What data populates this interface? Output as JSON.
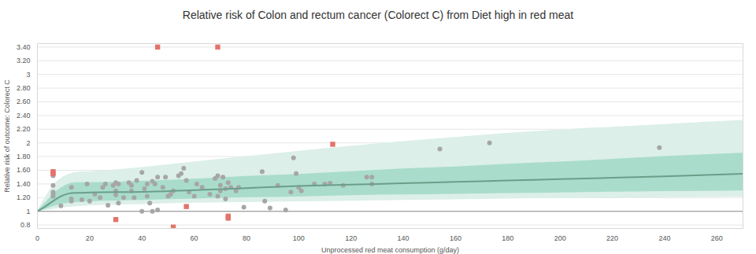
{
  "chart_data": {
    "type": "scatter",
    "title": "Relative risk of Colon and rectum cancer (Colorect C) from Diet high in red meat",
    "x_label": "Unprocessed red meat consumption (g/day)",
    "y_label": "Relative risk of outcome: Colorect C",
    "xlim": [
      0,
      270
    ],
    "xticks": [
      0,
      20,
      40,
      60,
      80,
      100,
      120,
      140,
      160,
      180,
      200,
      220,
      240,
      260
    ],
    "ylim": [
      0.75,
      3.45
    ],
    "yticks": [
      0.8,
      1,
      {
        "value": 1.2,
        "label": "1.20"
      },
      {
        "value": 1.4,
        "label": "1.40"
      },
      {
        "value": 1.6,
        "label": "1.60"
      },
      {
        "value": 1.8,
        "label": "1.80"
      },
      2,
      {
        "value": 2.2,
        "label": "2.20"
      },
      {
        "value": 2.4,
        "label": "2.40"
      },
      {
        "value": 2.6,
        "label": "2.60"
      },
      {
        "value": 2.8,
        "label": "2.80"
      },
      3,
      {
        "value": 3.2,
        "label": "3.20"
      },
      {
        "value": 3.4,
        "label": "3.40"
      }
    ],
    "grid": true,
    "baseline": 1,
    "bands": [
      {
        "color": "#dcefe9",
        "x": [
          0,
          3,
          6,
          9,
          12,
          15,
          20,
          40,
          60,
          80,
          100,
          120,
          140,
          160,
          180,
          200,
          220,
          240,
          270
        ],
        "lower": [
          1,
          1.01,
          1.03,
          1.05,
          1.06,
          1.07,
          1.08,
          1.1,
          1.12,
          1.13,
          1.14,
          1.15,
          1.16,
          1.17,
          1.18,
          1.19,
          1.19,
          1.2,
          1.21
        ],
        "upper": [
          1,
          1.2,
          1.38,
          1.48,
          1.54,
          1.57,
          1.58,
          1.64,
          1.72,
          1.8,
          1.88,
          1.95,
          2.02,
          2.08,
          2.14,
          2.19,
          2.23,
          2.27,
          2.33
        ]
      },
      {
        "color": "#a9dccb",
        "x": [
          0,
          3,
          6,
          9,
          12,
          15,
          20,
          40,
          60,
          80,
          100,
          120,
          140,
          160,
          180,
          200,
          220,
          240,
          270
        ],
        "lower": [
          1,
          1.03,
          1.07,
          1.1,
          1.12,
          1.13,
          1.14,
          1.16,
          1.18,
          1.2,
          1.21,
          1.23,
          1.24,
          1.25,
          1.26,
          1.27,
          1.28,
          1.29,
          1.3
        ],
        "upper": [
          1,
          1.12,
          1.25,
          1.34,
          1.4,
          1.42,
          1.42,
          1.44,
          1.47,
          1.51,
          1.54,
          1.58,
          1.62,
          1.65,
          1.69,
          1.72,
          1.76,
          1.8,
          1.85
        ]
      }
    ],
    "series": [
      {
        "type": "scatter",
        "color": "#a6a6a6",
        "marker": "circle",
        "x": [
          6,
          6,
          6,
          6,
          6,
          6,
          9,
          13,
          13,
          13,
          17,
          19,
          20,
          22,
          24,
          25,
          26,
          27,
          29,
          30,
          30,
          31,
          31,
          30,
          33,
          35,
          36,
          36,
          37,
          38,
          40,
          40,
          41,
          42,
          42,
          43,
          44,
          44,
          45,
          46,
          46,
          48,
          49,
          50,
          51,
          52,
          54,
          55,
          56,
          57,
          58,
          60,
          61,
          63,
          66,
          68,
          69,
          69,
          70,
          70,
          71,
          72,
          72,
          73,
          74,
          76,
          77,
          79,
          86,
          87,
          89,
          92,
          95,
          97,
          98,
          99,
          100,
          101,
          106,
          110,
          112,
          117,
          126,
          128,
          128,
          154,
          173,
          238
        ],
        "values": [
          1.55,
          1.52,
          1.38,
          1.28,
          1.25,
          1.22,
          1.08,
          1.35,
          1.15,
          1.18,
          1.17,
          1.4,
          1.15,
          1.25,
          1.2,
          1.35,
          1.4,
          1.09,
          1.38,
          1.42,
          1.3,
          1.4,
          1.12,
          1.24,
          1.2,
          1.42,
          1.38,
          1.3,
          1.2,
          1.45,
          1.57,
          1.0,
          1.33,
          1.4,
          1.22,
          1.12,
          1.44,
          1.0,
          1.4,
          1.5,
          1.02,
          1.35,
          1.5,
          1.22,
          1.25,
          1.3,
          1.52,
          1.55,
          1.63,
          1.45,
          1.28,
          1.22,
          1.4,
          1.35,
          1.25,
          1.48,
          1.52,
          1.22,
          1.38,
          1.3,
          1.5,
          1.33,
          1.18,
          1.42,
          1.35,
          1.3,
          1.35,
          1.06,
          1.58,
          1.15,
          1.05,
          1.38,
          1.02,
          1.28,
          1.78,
          1.55,
          1.35,
          1.3,
          1.4,
          1.4,
          1.41,
          1.38,
          1.5,
          1.5,
          1.4,
          1.91,
          2.0,
          1.93
        ]
      },
      {
        "type": "scatter",
        "color": "#e3736b",
        "marker": "square",
        "x": [
          6,
          6,
          30,
          46,
          52,
          57,
          69,
          73,
          73,
          113
        ],
        "values": [
          1.58,
          1.55,
          0.88,
          3.4,
          0.77,
          1.07,
          3.4,
          0.93,
          0.9,
          1.98
        ]
      },
      {
        "type": "line",
        "color": "#6c9e89",
        "x": [
          0,
          3,
          6,
          9,
          12,
          15,
          20,
          40,
          60,
          80,
          100,
          120,
          140,
          160,
          180,
          200,
          220,
          240,
          270
        ],
        "values": [
          1,
          1.07,
          1.15,
          1.22,
          1.26,
          1.27,
          1.275,
          1.285,
          1.31,
          1.34,
          1.37,
          1.39,
          1.41,
          1.43,
          1.45,
          1.47,
          1.49,
          1.51,
          1.55
        ]
      }
    ]
  }
}
